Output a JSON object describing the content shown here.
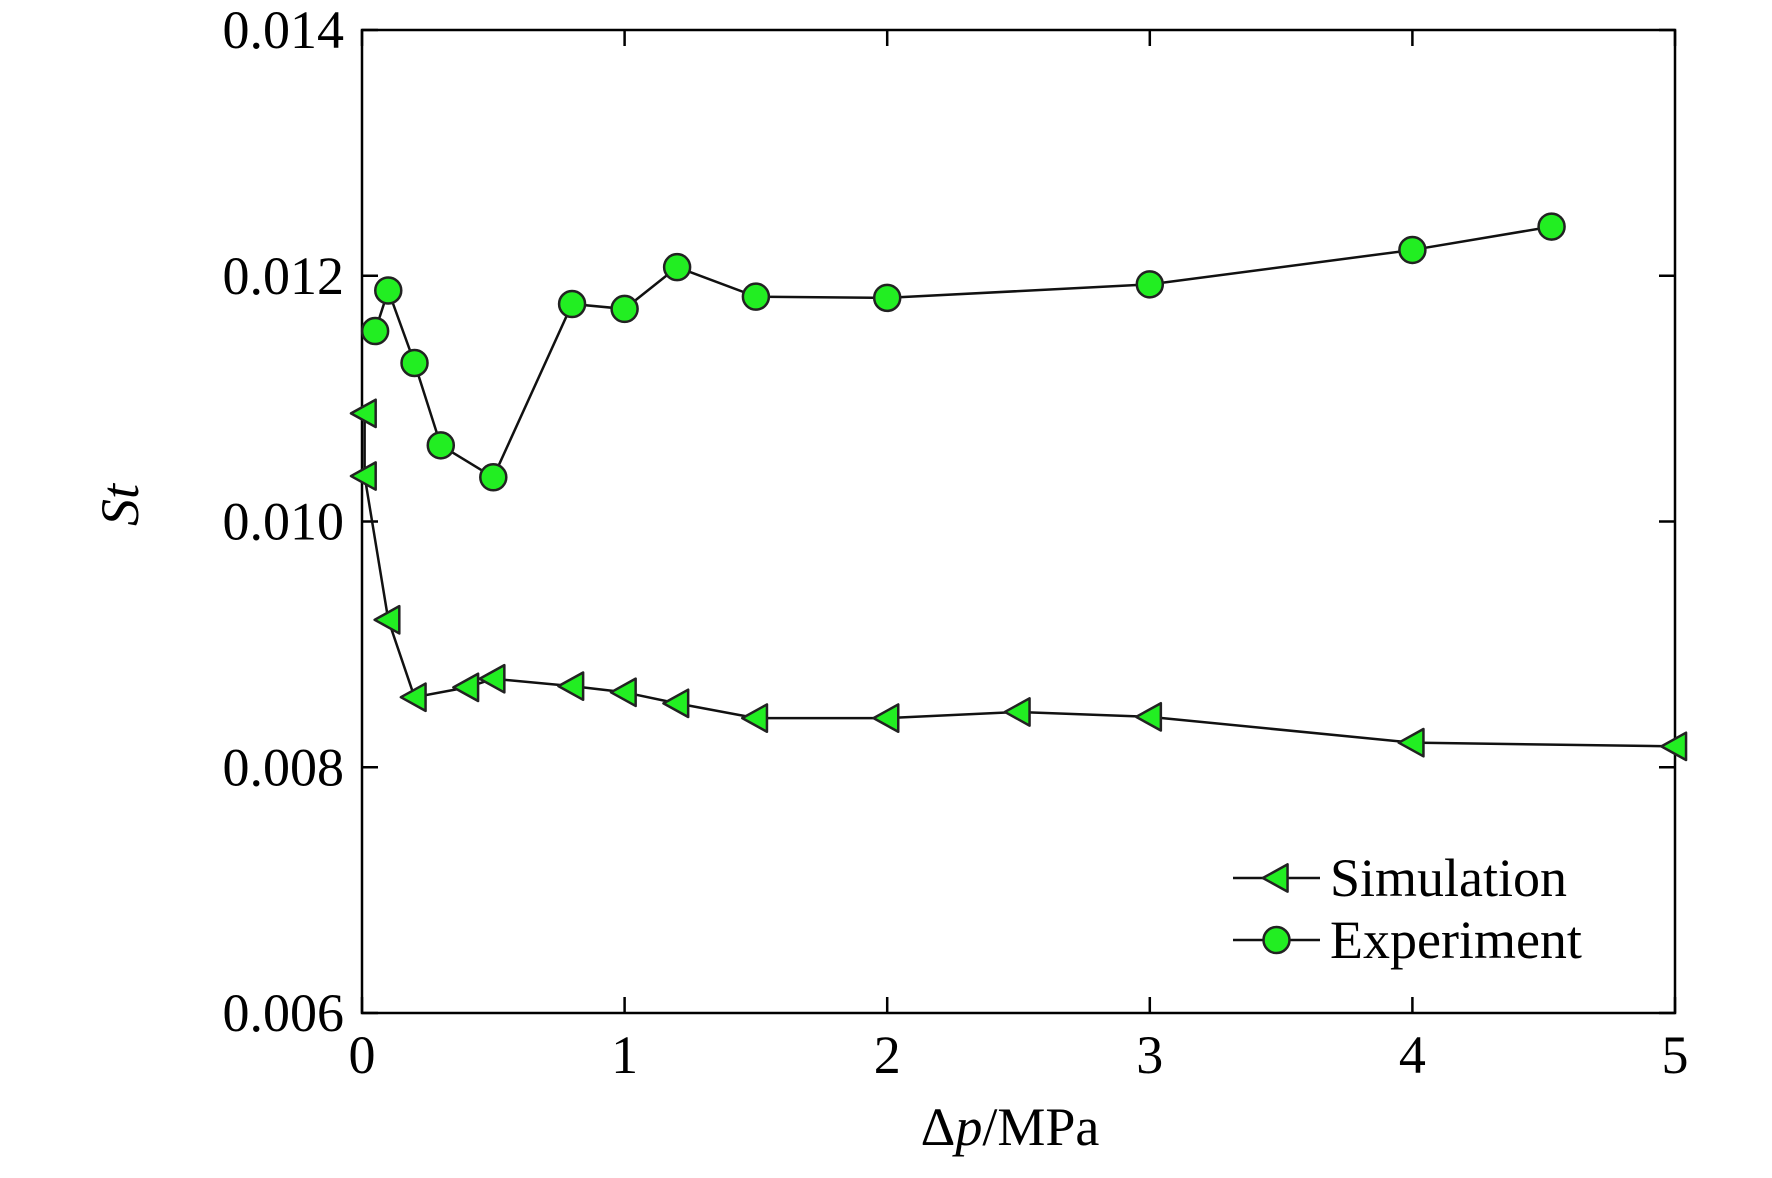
{
  "chart_data": {
    "type": "line",
    "title": "",
    "xlabel": {
      "symbol": "Δ",
      "variable": "p",
      "unit": "/MPa"
    },
    "ylabel": "St",
    "xlim": [
      0,
      5
    ],
    "ylim": [
      0.006,
      0.014
    ],
    "xticks": [
      "0",
      "1",
      "2",
      "3",
      "4",
      "5"
    ],
    "yticks": [
      "0.006",
      "0.008",
      "0.010",
      "0.012",
      "0.014"
    ],
    "grid": false,
    "legend_position": "bottom-right",
    "series": [
      {
        "name": "Simulation",
        "marker": "triangle-left",
        "color": "#22ee22",
        "x": [
          0.01,
          0.01,
          0.1,
          0.2,
          0.4,
          0.5,
          0.8,
          1.0,
          1.2,
          1.5,
          2.0,
          2.5,
          3.0,
          4.0,
          5.0
        ],
        "y": [
          0.01088,
          0.01037,
          0.0092,
          0.00857,
          0.00865,
          0.00872,
          0.00866,
          0.00861,
          0.00852,
          0.0084,
          0.0084,
          0.00845,
          0.00841,
          0.0082,
          0.00817
        ]
      },
      {
        "name": "Experiment",
        "marker": "circle",
        "color": "#22ee22",
        "x": [
          0.05,
          0.1,
          0.2,
          0.3,
          0.5,
          0.8,
          1.0,
          1.2,
          1.5,
          2.0,
          3.0,
          4.0,
          4.53
        ],
        "y": [
          0.01155,
          0.01188,
          0.01129,
          0.01062,
          0.01036,
          0.01177,
          0.01173,
          0.01207,
          0.01183,
          0.01182,
          0.01193,
          0.01221,
          0.0124
        ]
      }
    ]
  }
}
